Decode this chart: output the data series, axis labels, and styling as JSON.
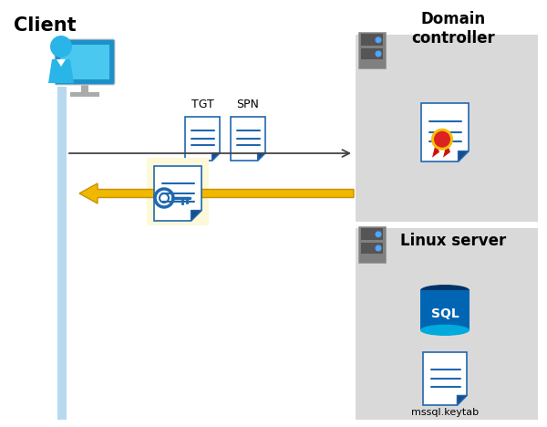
{
  "bg_color": "#ffffff",
  "client_label": "Client",
  "domain_label": "Domain\ncontroller",
  "linux_label": "Linux server",
  "tgt_label": "TGT",
  "spn_label": "SPN",
  "keytab_label": "mssql.keytab",
  "client_bar_color": "#b8d8f0",
  "domain_box_color": "#d9d9d9",
  "linux_box_color": "#d9d9d9",
  "key_highlight_color": "#fdf9d8",
  "arrow1_color": "#444444",
  "arrow2_color": "#f0b800",
  "doc_blue": "#2068b0",
  "doc_fold_blue": "#1a4c8c",
  "sql_blue_dark": "#003366",
  "sql_blue_mid": "#0066b3",
  "sql_blue_light": "#00aadd",
  "server_gray": "#808080",
  "server_dark": "#555555",
  "server_led": "#4da6ff"
}
